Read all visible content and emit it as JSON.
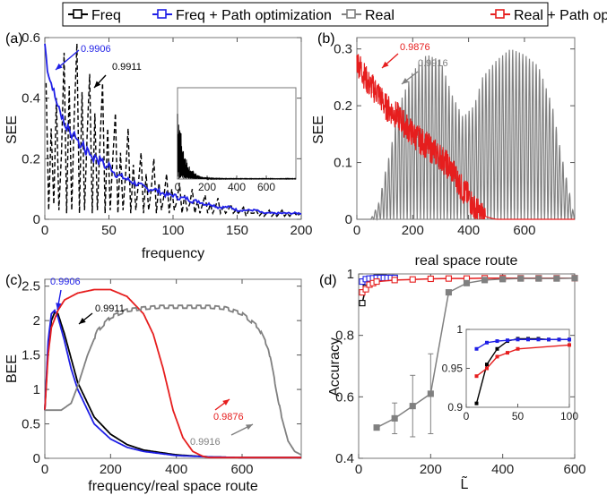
{
  "legend": {
    "items": [
      {
        "label": "Freq",
        "color": "#000000"
      },
      {
        "label": "Freq + Path optimization",
        "color": "#1f1fe6"
      },
      {
        "label": "Real",
        "color": "#808080"
      },
      {
        "label": "Real + Path optimization",
        "color": "#e61e1e"
      }
    ]
  },
  "chart_data": [
    {
      "panel": "(a)",
      "type": "line",
      "xlabel": "frequency",
      "ylabel": "SEE",
      "xlim": [
        0,
        200
      ],
      "ylim": [
        0,
        0.6
      ],
      "xticks": [
        0,
        50,
        100,
        150,
        200
      ],
      "xtick_labels": [
        "0",
        "50",
        "100",
        "150",
        "200"
      ],
      "yticks": [
        0,
        0.2,
        0.4,
        0.6
      ],
      "ytick_labels": [
        "0",
        "0.2",
        "0.4",
        "0.6"
      ],
      "series": [
        {
          "color": "#000000",
          "style": "dashed",
          "x": [
            1,
            3,
            5,
            7,
            9,
            11,
            13,
            15,
            17,
            19,
            21,
            23,
            25,
            27,
            29,
            31,
            33,
            35,
            37,
            39,
            41,
            43,
            45,
            47,
            49,
            51,
            53,
            55,
            57,
            59,
            61,
            63,
            65,
            67,
            69,
            71,
            73,
            75,
            77,
            79,
            81,
            83,
            85,
            87,
            89,
            91,
            93,
            95,
            97,
            99,
            101,
            103,
            105,
            107,
            109,
            111,
            113,
            115,
            117,
            119,
            121,
            123,
            125,
            127,
            129,
            131,
            133,
            135,
            137,
            139,
            141,
            143,
            145,
            147,
            149,
            151,
            153,
            155,
            157,
            159,
            161,
            163,
            165,
            167,
            169,
            171,
            173,
            175,
            177,
            179,
            181,
            183,
            185,
            187,
            189,
            191,
            193,
            195,
            197,
            199
          ],
          "y": [
            0.45,
            0.03,
            0.3,
            0.05,
            0.4,
            0.03,
            0.22,
            0.55,
            0.02,
            0.44,
            0.03,
            0.35,
            0.58,
            0.02,
            0.42,
            0.03,
            0.28,
            0.48,
            0.02,
            0.35,
            0.03,
            0.25,
            0.45,
            0.02,
            0.3,
            0.03,
            0.2,
            0.35,
            0.02,
            0.22,
            0.03,
            0.15,
            0.3,
            0.02,
            0.18,
            0.03,
            0.12,
            0.22,
            0.02,
            0.15,
            0.03,
            0.1,
            0.2,
            0.02,
            0.12,
            0.03,
            0.08,
            0.15,
            0.02,
            0.1,
            0.03,
            0.06,
            0.12,
            0.02,
            0.08,
            0.03,
            0.05,
            0.1,
            0.02,
            0.06,
            0.02,
            0.05,
            0.08,
            0.02,
            0.05,
            0.02,
            0.04,
            0.07,
            0.02,
            0.04,
            0.02,
            0.03,
            0.05,
            0.02,
            0.03,
            0.02,
            0.03,
            0.04,
            0.01,
            0.03,
            0.02,
            0.02,
            0.03,
            0.01,
            0.02,
            0.01,
            0.02,
            0.03,
            0.01,
            0.02,
            0.01,
            0.02,
            0.03,
            0.01,
            0.02,
            0.01,
            0.02,
            0.02,
            0.01,
            0.02
          ]
        },
        {
          "color": "#1f1fe6",
          "style": "solid",
          "x": [
            0,
            2,
            4,
            6,
            8,
            10,
            12,
            14,
            16,
            18,
            20,
            22,
            24,
            26,
            28,
            30,
            32,
            34,
            36,
            38,
            40,
            42,
            44,
            46,
            48,
            50,
            55,
            60,
            65,
            70,
            75,
            80,
            85,
            90,
            95,
            100,
            105,
            110,
            115,
            120,
            125,
            130,
            135,
            140,
            145,
            150,
            155,
            160,
            165,
            170,
            175,
            180,
            185,
            190,
            195,
            200
          ],
          "y": [
            0.58,
            0.5,
            0.46,
            0.44,
            0.4,
            0.38,
            0.35,
            0.34,
            0.3,
            0.31,
            0.29,
            0.27,
            0.28,
            0.25,
            0.24,
            0.25,
            0.22,
            0.23,
            0.21,
            0.2,
            0.21,
            0.19,
            0.2,
            0.18,
            0.17,
            0.18,
            0.15,
            0.14,
            0.13,
            0.12,
            0.11,
            0.1,
            0.1,
            0.09,
            0.08,
            0.08,
            0.07,
            0.07,
            0.06,
            0.06,
            0.05,
            0.05,
            0.04,
            0.04,
            0.04,
            0.03,
            0.03,
            0.03,
            0.03,
            0.02,
            0.02,
            0.02,
            0.02,
            0.02,
            0.02,
            0.02
          ]
        }
      ],
      "annotations": [
        {
          "text": "0.9906",
          "color": "#1f1fe6"
        },
        {
          "text": "0.9911",
          "color": "#000000"
        }
      ],
      "inset": {
        "xlim": [
          0,
          800
        ],
        "ylim": [
          0,
          0.8
        ],
        "xticks": [
          0,
          200,
          400,
          600
        ],
        "xtick_labels": [
          "0",
          "200",
          "400",
          "600"
        ],
        "series": [
          {
            "color": "#000000",
            "x": [
              0,
              5,
              10,
              15,
              20,
              25,
              30,
              35,
              40,
              45,
              50,
              60,
              70,
              80,
              90,
              100,
              120,
              140,
              160,
              180,
              200,
              250,
              300,
              400,
              500,
              600,
              700,
              800
            ],
            "y": [
              0.1,
              0.6,
              0.2,
              0.7,
              0.15,
              0.55,
              0.1,
              0.45,
              0.1,
              0.35,
              0.08,
              0.3,
              0.06,
              0.22,
              0.05,
              0.15,
              0.1,
              0.07,
              0.06,
              0.05,
              0.03,
              0.02,
              0.015,
              0.01,
              0.008,
              0.006,
              0.005,
              0.005
            ]
          }
        ]
      }
    },
    {
      "panel": "(b)",
      "type": "line",
      "xlabel": "real space route",
      "ylabel": "SEE",
      "xlim": [
        0,
        780
      ],
      "ylim": [
        0,
        0.32
      ],
      "xticks": [
        0,
        200,
        400,
        600
      ],
      "xtick_labels": [
        "0",
        "200",
        "400",
        "600"
      ],
      "yticks": [
        0,
        0.1,
        0.2,
        0.3
      ],
      "ytick_labels": [
        "0",
        "0.1",
        "0.2",
        "0.3"
      ],
      "series": [
        {
          "color": "#808080",
          "style": "oscillating",
          "x": [
            0,
            50,
            80,
            100,
            120,
            150,
            200,
            250,
            300,
            340,
            380,
            420,
            450,
            500,
            550,
            600,
            650,
            700,
            730,
            760,
            780
          ],
          "y": [
            0,
            0,
            0.03,
            0.08,
            0.12,
            0.2,
            0.26,
            0.29,
            0.28,
            0.22,
            0.18,
            0.2,
            0.25,
            0.28,
            0.3,
            0.29,
            0.27,
            0.2,
            0.12,
            0.05,
            0
          ],
          "period": 12
        },
        {
          "color": "#e61e1e",
          "style": "noisy",
          "x": [
            0,
            20,
            40,
            60,
            80,
            100,
            150,
            200,
            250,
            300,
            350,
            380,
            400,
            420,
            440,
            460,
            480,
            500,
            780
          ],
          "y": [
            0.28,
            0.26,
            0.24,
            0.23,
            0.22,
            0.2,
            0.18,
            0.15,
            0.13,
            0.11,
            0.08,
            0.05,
            0.04,
            0.02,
            0.01,
            0.005,
            0.002,
            0,
            0
          ]
        }
      ],
      "annotations": [
        {
          "text": "0.9876",
          "color": "#e61e1e"
        },
        {
          "text": "0.9916",
          "color": "#808080"
        }
      ]
    },
    {
      "panel": "(c)",
      "type": "line",
      "xlabel": "frequency/real space route",
      "ylabel": "BEE",
      "xlim": [
        0,
        780
      ],
      "ylim": [
        0,
        2.6
      ],
      "xticks": [
        0,
        200,
        400,
        600
      ],
      "xtick_labels": [
        "0",
        "200",
        "400",
        "600"
      ],
      "yticks": [
        0,
        0.5,
        1,
        1.5,
        2,
        2.5
      ],
      "ytick_labels": [
        "0",
        "0.5",
        "1",
        "1.5",
        "2",
        "2.5"
      ],
      "series": [
        {
          "color": "#000000",
          "x": [
            0,
            10,
            20,
            30,
            40,
            60,
            80,
            100,
            150,
            200,
            250,
            300,
            400,
            500,
            600,
            700,
            780
          ],
          "y": [
            0.7,
            1.6,
            2.0,
            2.12,
            2.1,
            1.8,
            1.45,
            1.1,
            0.6,
            0.35,
            0.2,
            0.12,
            0.05,
            0.02,
            0.01,
            0.01,
            0.01
          ]
        },
        {
          "color": "#1f1fe6",
          "x": [
            0,
            10,
            20,
            30,
            40,
            60,
            80,
            100,
            150,
            200,
            250,
            300,
            400,
            500,
            600,
            700,
            780
          ],
          "y": [
            0.7,
            1.7,
            2.1,
            2.15,
            2.05,
            1.7,
            1.3,
            1.0,
            0.5,
            0.28,
            0.16,
            0.1,
            0.04,
            0.02,
            0.01,
            0.01,
            0.01
          ]
        },
        {
          "color": "#e61e1e",
          "x": [
            0,
            10,
            20,
            40,
            60,
            100,
            150,
            200,
            250,
            300,
            330,
            360,
            390,
            420,
            450,
            480,
            500,
            600,
            780
          ],
          "y": [
            0.7,
            1.5,
            1.9,
            2.15,
            2.3,
            2.4,
            2.45,
            2.45,
            2.35,
            2.1,
            1.8,
            1.3,
            0.7,
            0.3,
            0.1,
            0.03,
            0.01,
            0.01,
            0.01
          ]
        },
        {
          "color": "#808080",
          "x": [
            0,
            50,
            80,
            100,
            130,
            160,
            200,
            250,
            300,
            350,
            400,
            450,
            500,
            550,
            600,
            650,
            680,
            700,
            720,
            740,
            760,
            780
          ],
          "y": [
            0.7,
            0.7,
            0.8,
            1.05,
            1.5,
            1.85,
            2.05,
            2.15,
            2.18,
            2.2,
            2.2,
            2.2,
            2.2,
            2.18,
            2.1,
            1.9,
            1.6,
            1.1,
            0.6,
            0.25,
            0.1,
            0.05
          ]
        }
      ],
      "annotations": [
        {
          "text": "0.9906",
          "color": "#1f1fe6"
        },
        {
          "text": "0.9911",
          "color": "#000000"
        },
        {
          "text": "0.9876",
          "color": "#e61e1e"
        },
        {
          "text": "0.9916",
          "color": "#808080"
        }
      ]
    },
    {
      "panel": "(d)",
      "type": "line",
      "xlabel": "L̃",
      "ylabel": "Accuracy",
      "xlim": [
        0,
        600
      ],
      "ylim": [
        0.4,
        1.0
      ],
      "xticks": [
        0,
        200,
        400,
        600
      ],
      "xtick_labels": [
        "0",
        "200",
        "400",
        "600"
      ],
      "yticks": [
        0.4,
        0.6,
        0.8,
        1.0
      ],
      "ytick_labels": [
        "0.4",
        "0.6",
        "0.8",
        "1"
      ],
      "series": [
        {
          "color": "#000000",
          "x": [
            10,
            20,
            30,
            40,
            50,
            60,
            70,
            80,
            90,
            100
          ],
          "y": [
            0.905,
            0.955,
            0.975,
            0.985,
            0.988,
            0.988,
            0.988,
            0.987,
            0.987,
            0.987
          ]
        },
        {
          "color": "#1f1fe6",
          "x": [
            10,
            20,
            30,
            40,
            50,
            60,
            70,
            80,
            90,
            100
          ],
          "y": [
            0.975,
            0.983,
            0.985,
            0.986,
            0.987,
            0.987,
            0.987,
            0.987,
            0.987,
            0.987
          ]
        },
        {
          "color": "#e61e1e",
          "x": [
            10,
            20,
            30,
            40,
            50,
            100,
            150,
            200,
            250,
            300,
            350,
            400,
            450,
            500,
            550,
            600
          ],
          "y": [
            0.94,
            0.95,
            0.965,
            0.97,
            0.975,
            0.98,
            0.982,
            0.984,
            0.985,
            0.985,
            0.986,
            0.986,
            0.986,
            0.986,
            0.986,
            0.986
          ]
        },
        {
          "color": "#808080",
          "x": [
            50,
            100,
            150,
            200,
            250,
            300,
            350,
            400,
            450,
            500,
            550,
            600
          ],
          "y": [
            0.5,
            0.53,
            0.57,
            0.61,
            0.94,
            0.97,
            0.98,
            0.983,
            0.985,
            0.985,
            0.985,
            0.986
          ],
          "err": [
            0,
            0.05,
            0.1,
            0.13,
            0,
            0,
            0,
            0,
            0,
            0,
            0,
            0
          ]
        }
      ],
      "inset": {
        "xlim": [
          0,
          100
        ],
        "ylim": [
          0.9,
          1.0
        ],
        "xticks": [
          0,
          50,
          100
        ],
        "xtick_labels": [
          "0",
          "50",
          "100"
        ],
        "yticks": [
          0.9,
          0.95,
          1.0
        ],
        "ytick_labels": [
          "0.9",
          "0.95",
          "1"
        ]
      }
    }
  ]
}
